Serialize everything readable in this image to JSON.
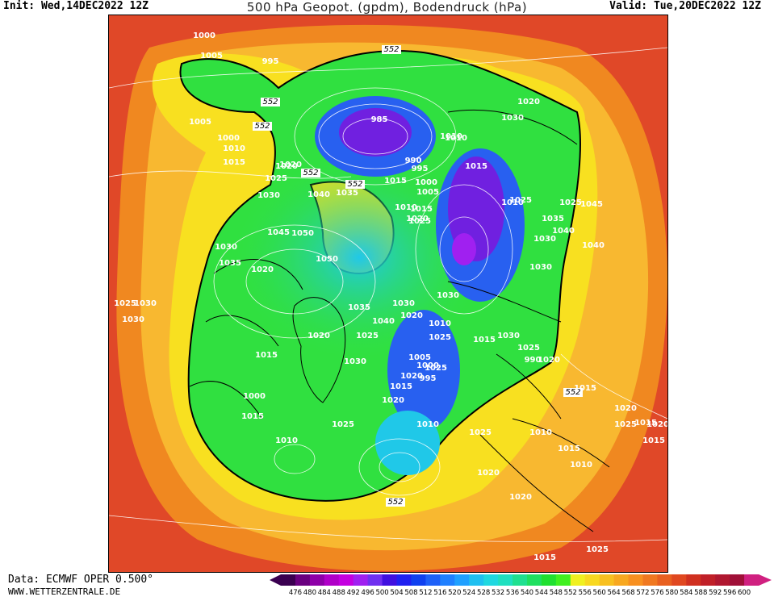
{
  "header": {
    "init": "Init: Wed,14DEC2022 12Z",
    "title": "500 hPa Geopot. (gpdm), Bodendruck (hPa)",
    "valid": "Valid: Tue,20DEC2022 12Z"
  },
  "footer": {
    "source": "Data: ECMWF OPER 0.500°",
    "site": "WWW.WETTERZENTRALE.DE"
  },
  "legend": {
    "ticks": [
      "476",
      "480",
      "484",
      "488",
      "492",
      "496",
      "500",
      "504",
      "508",
      "512",
      "516",
      "520",
      "524",
      "528",
      "532",
      "536",
      "540",
      "544",
      "548",
      "552",
      "556",
      "560",
      "564",
      "568",
      "572",
      "576",
      "580",
      "584",
      "588",
      "592",
      "596",
      "600"
    ],
    "colors": [
      "#3a0050",
      "#6a0080",
      "#8e00a8",
      "#b000c8",
      "#c400e0",
      "#a020f0",
      "#7030f0",
      "#4010e0",
      "#2020f0",
      "#1040f0",
      "#1e60f8",
      "#2080ff",
      "#20a0ff",
      "#20c0f0",
      "#20d8e0",
      "#20e0c0",
      "#20e090",
      "#20e060",
      "#20e030",
      "#40f020",
      "#f0f020",
      "#f8d820",
      "#f8c020",
      "#f8a820",
      "#f89020",
      "#f07820",
      "#e86020",
      "#e04820",
      "#d03020",
      "#c02028",
      "#b01830",
      "#a01038",
      "#d02080"
    ],
    "left_arrow_color": "#3a0050",
    "right_arrow_color": "#d02080"
  },
  "map": {
    "contour_552_labels": [
      "552",
      "552",
      "552",
      "552",
      "552",
      "552",
      "552"
    ],
    "pressure_labels": [
      "1000",
      "1005",
      "995",
      "1005",
      "1000",
      "1010",
      "1015",
      "985",
      "1020",
      "990",
      "995",
      "1025",
      "1010",
      "1000",
      "1030",
      "1040",
      "1035",
      "1015",
      "1020",
      "1010",
      "1015",
      "1025",
      "1045",
      "1050",
      "1005",
      "1020",
      "1010",
      "1030",
      "1015",
      "1020",
      "1010",
      "1025",
      "1030",
      "1035",
      "1040",
      "1025",
      "1050",
      "1030",
      "1045",
      "1040",
      "1030",
      "1020",
      "1035",
      "1040",
      "1025",
      "1030",
      "1020",
      "1035",
      "1030",
      "1020",
      "1015",
      "1010",
      "1025",
      "1030",
      "1005",
      "1025",
      "1000",
      "995",
      "1020",
      "1015",
      "1030",
      "1025",
      "990",
      "1010",
      "1015",
      "1020",
      "1025",
      "1000",
      "1010",
      "1015",
      "1020",
      "1025",
      "1020",
      "1010",
      "1015",
      "1020",
      "1025",
      "1015",
      "1010",
      "1015",
      "1020",
      "1025",
      "1015",
      "1020",
      "1015",
      "1025",
      "1030",
      "1030"
    ],
    "colors": {
      "outer_red": "#e04828",
      "orange": "#f08820",
      "light_orange": "#f8b830",
      "yellow": "#f8e020",
      "green": "#30e040",
      "cyan": "#20c8e8",
      "blue": "#2860f0",
      "violet": "#7020e0",
      "purple": "#a020f0"
    }
  }
}
